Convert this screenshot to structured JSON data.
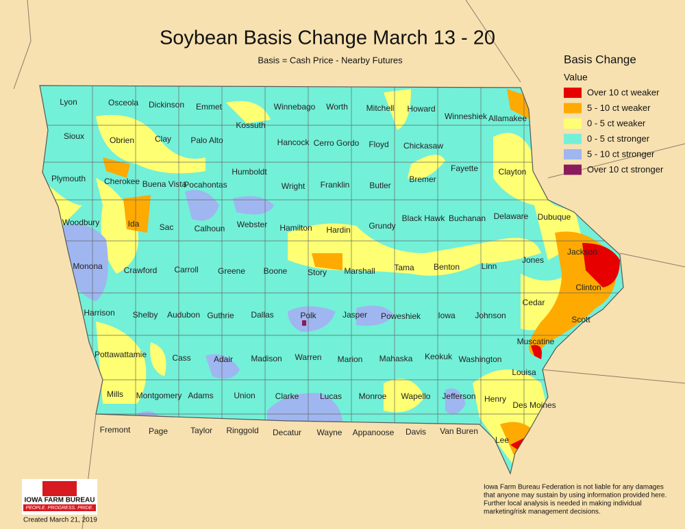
{
  "title": "Soybean Basis Change March 13 - 20",
  "subtitle": "Basis = Cash Price - Nearby Futures",
  "legend": {
    "title": "Basis Change",
    "subtitle": "Value",
    "items": [
      {
        "label": "Over 10 ct weaker",
        "color": "#e60000"
      },
      {
        "label": "5 - 10 ct weaker",
        "color": "#ffaa00"
      },
      {
        "label": "0 - 5 ct weaker",
        "color": "#ffff73"
      },
      {
        "label": "0 - 5 ct stronger",
        "color": "#73f0d8"
      },
      {
        "label": "5 - 10 ct stronger",
        "color": "#9fb6f0"
      },
      {
        "label": "Over 10 ct stronger",
        "color": "#8a1a5c"
      }
    ]
  },
  "counties": [
    "Lyon",
    "Osceola",
    "Dickinson",
    "Emmet",
    "Winnebago",
    "Worth",
    "Mitchell",
    "Howard",
    "Winneshiek",
    "Allamakee",
    "Sioux",
    "Obrien",
    "Clay",
    "Palo Alto",
    "Kossuth",
    "Hancock",
    "Cerro Gordo",
    "Floyd",
    "Chickasaw",
    "Fayette",
    "Clayton",
    "Plymouth",
    "Cherokee",
    "Buena Vista",
    "Pocahontas",
    "Humboldt",
    "Wright",
    "Franklin",
    "Butler",
    "Bremer",
    "Black Hawk",
    "Buchanan",
    "Delaware",
    "Dubuque",
    "Woodbury",
    "Ida",
    "Sac",
    "Calhoun",
    "Webster",
    "Hamilton",
    "Hardin",
    "Grundy",
    "Monona",
    "Crawford",
    "Carroll",
    "Greene",
    "Boone",
    "Story",
    "Marshall",
    "Tama",
    "Benton",
    "Linn",
    "Jones",
    "Jackson",
    "Clinton",
    "Cedar",
    "Harrison",
    "Shelby",
    "Audubon",
    "Guthrie",
    "Dallas",
    "Polk",
    "Jasper",
    "Poweshiek",
    "Iowa",
    "Johnson",
    "Scott",
    "Muscatine",
    "Pottawattamie",
    "Cass",
    "Adair",
    "Madison",
    "Warren",
    "Marion",
    "Mahaska",
    "Keokuk",
    "Washington",
    "Louisa",
    "Mills",
    "Montgomery",
    "Adams",
    "Union",
    "Clarke",
    "Lucas",
    "Monroe",
    "Wapello",
    "Jefferson",
    "Henry",
    "Des Moines",
    "Fremont",
    "Page",
    "Taylor",
    "Ringgold",
    "Decatur",
    "Wayne",
    "Appanoose",
    "Davis",
    "Van Buren",
    "Lee"
  ],
  "disclaimer": [
    "Iowa Farm Bureau Federation is not liable for any damages",
    "that anyone may sustain by using information provided here.",
    "Further local analysis is needed in making individual",
    "marketing/risk management decisions."
  ],
  "logo": {
    "name": "IOWA FARM BUREAU",
    "tagline": "PEOPLE. PROGRESS. PRIDE."
  },
  "created": "Created March 21, 2019"
}
